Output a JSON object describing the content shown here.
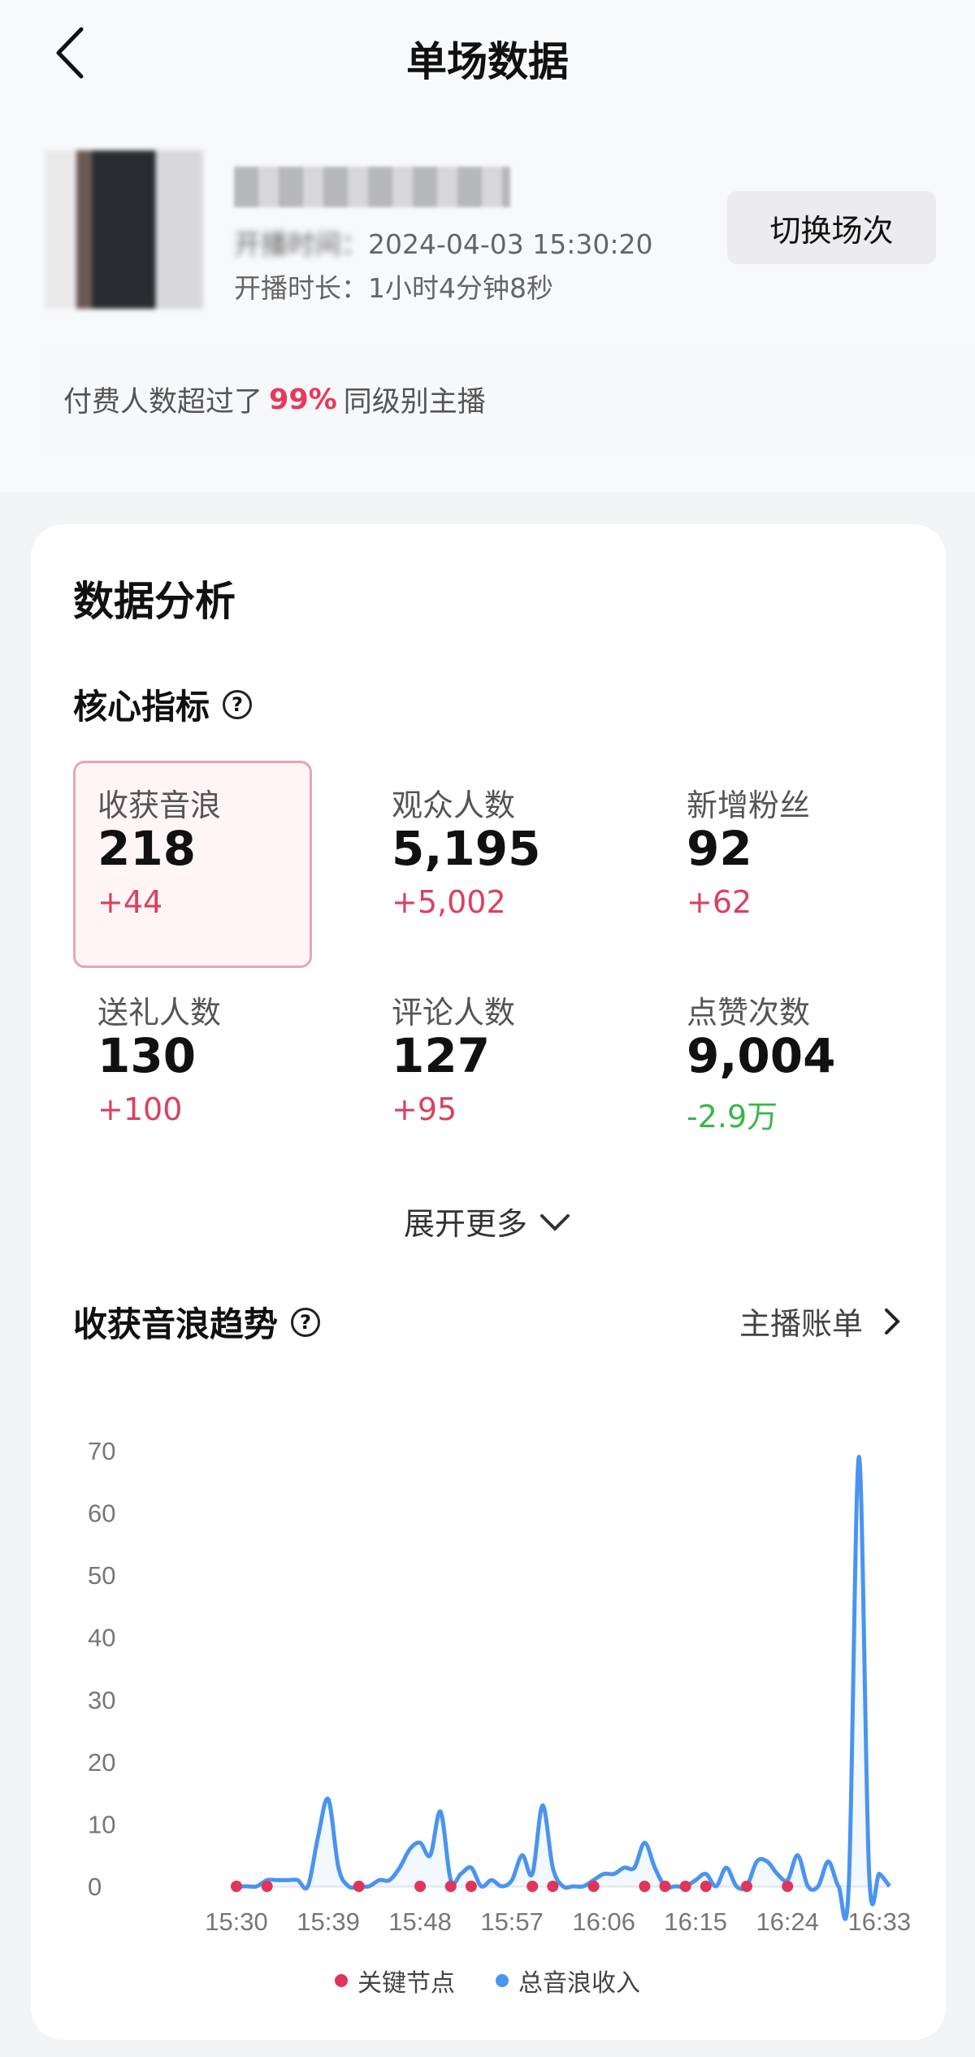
{
  "header": {
    "title": "单场数据",
    "back_icon": "chevron-left-icon"
  },
  "session": {
    "start_time_label": "开播时间：",
    "start_time": "2024-04-03 15:30:20",
    "duration_label": "开播时长：",
    "duration": "1小时4分钟8秒",
    "switch_label": "切换场次"
  },
  "banner": {
    "prefix": "付费人数超过了",
    "highlight": "99%",
    "suffix": "同级别主播",
    "highlight_color": "#e8395a"
  },
  "analysis": {
    "title": "数据分析",
    "core_title": "核心指标",
    "metrics": [
      {
        "label": "收获音浪",
        "value": "218",
        "delta": "+44"
      },
      {
        "label": "观众人数",
        "value": "5,195",
        "delta": "+5,002"
      },
      {
        "label": "新增粉丝",
        "value": "92",
        "delta": "+62"
      },
      {
        "label": "送礼人数",
        "value": "130",
        "delta": "+100"
      },
      {
        "label": "评论人数",
        "value": "127",
        "delta": "+95"
      },
      {
        "label": "点赞次数",
        "value": "9,004",
        "delta": "-2.9万"
      }
    ],
    "expand_label": "展开更多",
    "trend_title": "收获音浪趋势",
    "bill_label": "主播账单"
  },
  "chart_data": {
    "type": "line",
    "ylim": [
      0,
      70
    ],
    "y_ticks": [
      "0",
      "10",
      "20",
      "30",
      "40",
      "50",
      "60",
      "70"
    ],
    "x_ticks": [
      "15:30",
      "15:39",
      "15:48",
      "15:57",
      "16:06",
      "16:15",
      "16:24",
      "16:33"
    ],
    "x_start": "15:30",
    "series": [
      {
        "name": "总音浪收入",
        "color": "#4a94f0",
        "values": [
          0,
          0,
          0,
          1,
          1,
          1,
          1,
          0,
          8,
          14,
          3,
          0,
          0,
          0,
          1,
          1,
          3,
          6,
          7,
          5,
          12,
          1,
          2,
          3,
          0,
          1,
          0,
          1,
          5,
          2,
          13,
          3,
          0,
          0,
          0,
          1,
          2,
          2,
          3,
          3,
          7,
          3,
          0,
          0,
          0,
          1,
          2,
          0,
          3,
          0,
          0,
          4,
          4,
          2,
          1,
          5,
          0,
          0,
          4,
          0,
          0,
          69,
          2,
          2,
          0
        ]
      },
      {
        "name": "关键节点",
        "color": "#e0355a",
        "times": [
          "15:30",
          "15:33",
          "15:42",
          "15:48",
          "15:51",
          "15:53",
          "15:59",
          "16:01",
          "16:05",
          "16:10",
          "16:12",
          "16:14",
          "16:16",
          "16:20",
          "16:24"
        ]
      }
    ],
    "legend": [
      "关键节点",
      "总音浪收入"
    ],
    "legend_position": "bottom"
  }
}
